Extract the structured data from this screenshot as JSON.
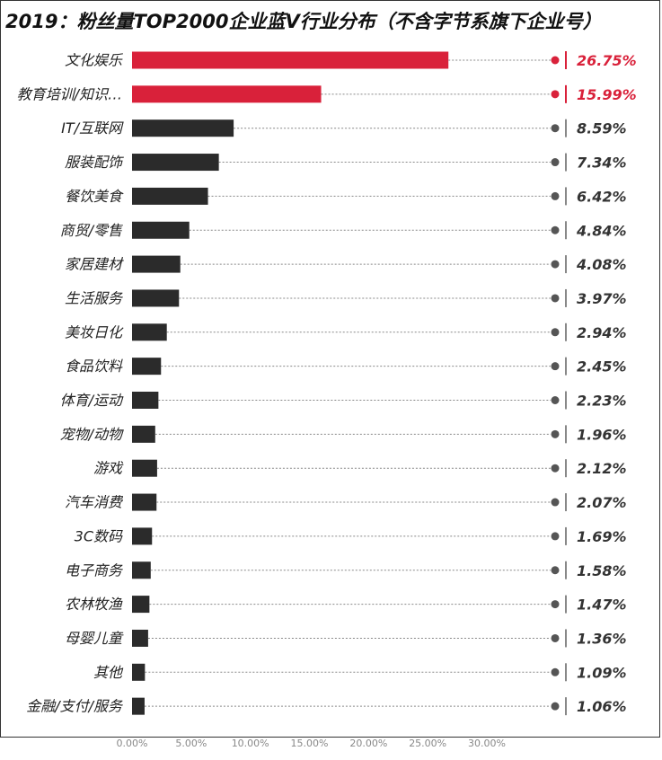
{
  "title": "2019：粉丝量TOP2000企业蓝V行业分布（不含字节系旗下企业号）",
  "colors": {
    "highlight": "#d9213a",
    "bar": "#2b2b2b",
    "guide": "#888888",
    "dot": "#555555"
  },
  "chart_data": {
    "type": "bar",
    "orientation": "horizontal",
    "title": "2019：粉丝量TOP2000企业蓝V行业分布（不含字节系旗下企业号）",
    "xlim": [
      0,
      30
    ],
    "xticks": [
      "0.00%",
      "5.00%",
      "10.00%",
      "15.00%",
      "20.00%",
      "25.00%",
      "30.00%"
    ],
    "categories": [
      "文化娱乐",
      "教育培训/知识…",
      "IT/互联网",
      "服装配饰",
      "餐饮美食",
      "商贸/零售",
      "家居建材",
      "生活服务",
      "美妆日化",
      "食品饮料",
      "体育/运动",
      "宠物/动物",
      "游戏",
      "汽车消费",
      "3C数码",
      "电子商务",
      "农林牧渔",
      "母婴儿童",
      "其他",
      "金融/支付/服务"
    ],
    "values": [
      26.75,
      15.99,
      8.59,
      7.34,
      6.42,
      4.84,
      4.08,
      3.97,
      2.94,
      2.45,
      2.23,
      1.96,
      2.12,
      2.07,
      1.69,
      1.58,
      1.47,
      1.36,
      1.09,
      1.06
    ],
    "value_labels": [
      "26.75%",
      "15.99%",
      "8.59%",
      "7.34%",
      "6.42%",
      "4.84%",
      "4.08%",
      "3.97%",
      "2.94%",
      "2.45%",
      "2.23%",
      "1.96%",
      "2.12%",
      "2.07%",
      "1.69%",
      "1.58%",
      "1.47%",
      "1.36%",
      "1.09%",
      "1.06%"
    ],
    "highlighted": [
      true,
      true,
      false,
      false,
      false,
      false,
      false,
      false,
      false,
      false,
      false,
      false,
      false,
      false,
      false,
      false,
      false,
      false,
      false,
      false
    ],
    "grid": false,
    "legend": "none"
  }
}
